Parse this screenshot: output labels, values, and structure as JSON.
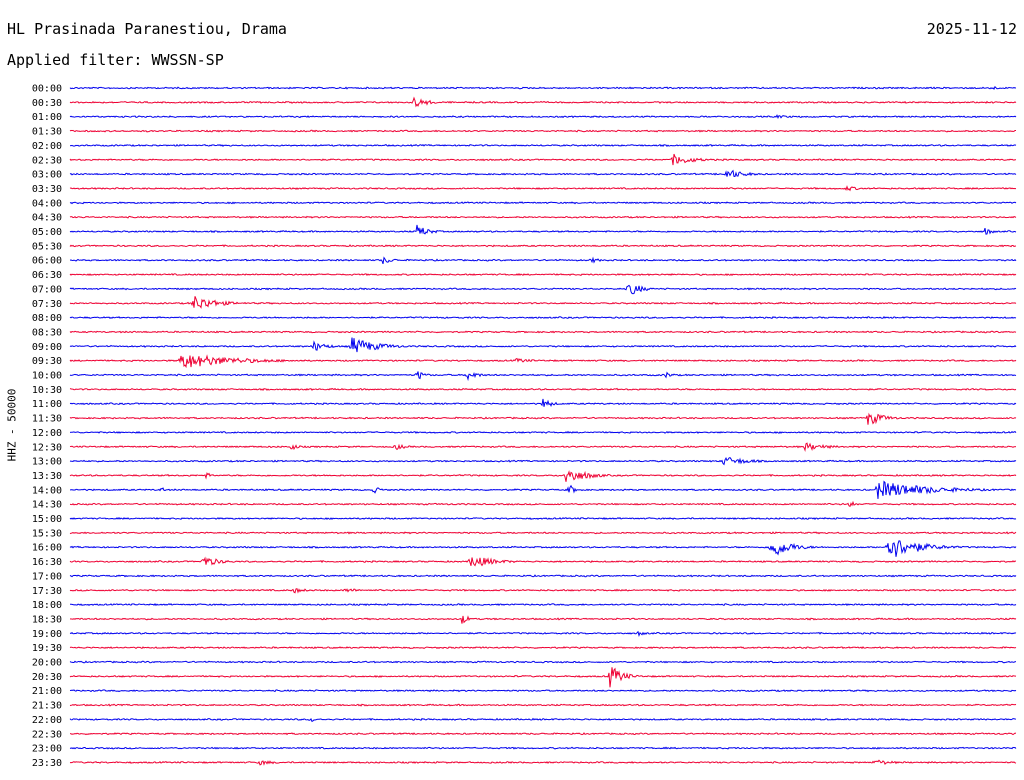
{
  "header": {
    "station": "HL Prasinada Paranestiou, Drama",
    "date": "2025-11-12",
    "filter": "Applied filter: WWSSN-SP"
  },
  "channel_label": "HHZ - 50000",
  "colors": {
    "trace_a": "#0000ee",
    "trace_b": "#ee0033",
    "text": "#000000",
    "background": "#ffffff"
  },
  "chart_data": {
    "type": "line",
    "title": "",
    "xlabel": "",
    "ylabel": "HHZ - 50000",
    "row_labels": [
      "00:00",
      "00:30",
      "01:00",
      "01:30",
      "02:00",
      "02:30",
      "03:00",
      "03:30",
      "04:00",
      "04:30",
      "05:00",
      "05:30",
      "06:00",
      "06:30",
      "07:00",
      "07:30",
      "08:00",
      "08:30",
      "09:00",
      "09:30",
      "10:00",
      "10:30",
      "11:00",
      "11:30",
      "12:00",
      "12:30",
      "13:00",
      "13:30",
      "14:00",
      "14:30",
      "15:00",
      "15:30",
      "16:00",
      "16:30",
      "17:00",
      "17:30",
      "18:00",
      "18:30",
      "19:00",
      "19:30",
      "20:00",
      "20:30",
      "21:00",
      "21:30",
      "22:00",
      "22:30",
      "23:00",
      "23:30"
    ],
    "row_colors": [
      "blue",
      "red"
    ],
    "x_range_minutes": [
      0,
      30
    ],
    "events": [
      {
        "row": "00:00",
        "minute": 29.2,
        "amp": 0.6,
        "dur": 0.4
      },
      {
        "row": "00:30",
        "minute": 10.9,
        "amp": 0.8,
        "dur": 1.3
      },
      {
        "row": "01:00",
        "minute": 22.4,
        "amp": 0.25,
        "dur": 1.5
      },
      {
        "row": "02:30",
        "minute": 19.1,
        "amp": 0.9,
        "dur": 1.8
      },
      {
        "row": "03:00",
        "minute": 20.8,
        "amp": 0.8,
        "dur": 1.6
      },
      {
        "row": "03:30",
        "minute": 24.6,
        "amp": 0.4,
        "dur": 1.2
      },
      {
        "row": "05:00",
        "minute": 11.0,
        "amp": 1.0,
        "dur": 1.0
      },
      {
        "row": "05:00",
        "minute": 29.0,
        "amp": 0.6,
        "dur": 0.7
      },
      {
        "row": "06:00",
        "minute": 9.9,
        "amp": 0.6,
        "dur": 1.0
      },
      {
        "row": "06:00",
        "minute": 16.5,
        "amp": 0.5,
        "dur": 0.7
      },
      {
        "row": "07:00",
        "minute": 17.7,
        "amp": 1.3,
        "dur": 1.0
      },
      {
        "row": "07:30",
        "minute": 3.9,
        "amp": 1.2,
        "dur": 2.0
      },
      {
        "row": "09:00",
        "minute": 7.7,
        "amp": 0.8,
        "dur": 1.2
      },
      {
        "row": "09:00",
        "minute": 8.9,
        "amp": 1.4,
        "dur": 2.2
      },
      {
        "row": "09:30",
        "minute": 3.5,
        "amp": 1.2,
        "dur": 4.6
      },
      {
        "row": "09:30",
        "minute": 14.1,
        "amp": 0.35,
        "dur": 1.8
      },
      {
        "row": "10:00",
        "minute": 11.0,
        "amp": 0.9,
        "dur": 0.6
      },
      {
        "row": "10:00",
        "minute": 12.6,
        "amp": 0.8,
        "dur": 0.9
      },
      {
        "row": "10:00",
        "minute": 18.9,
        "amp": 0.5,
        "dur": 0.6
      },
      {
        "row": "11:00",
        "minute": 15.0,
        "amp": 0.8,
        "dur": 0.8
      },
      {
        "row": "11:30",
        "minute": 25.3,
        "amp": 1.2,
        "dur": 1.3
      },
      {
        "row": "12:30",
        "minute": 7.0,
        "amp": 0.6,
        "dur": 0.6
      },
      {
        "row": "12:30",
        "minute": 10.3,
        "amp": 0.5,
        "dur": 1.0
      },
      {
        "row": "12:30",
        "minute": 23.3,
        "amp": 0.6,
        "dur": 2.0
      },
      {
        "row": "13:00",
        "minute": 20.7,
        "amp": 0.7,
        "dur": 2.2
      },
      {
        "row": "13:30",
        "minute": 4.3,
        "amp": 0.5,
        "dur": 0.6
      },
      {
        "row": "13:30",
        "minute": 15.7,
        "amp": 1.3,
        "dur": 1.8
      },
      {
        "row": "14:00",
        "minute": 2.9,
        "amp": 0.6,
        "dur": 0.3
      },
      {
        "row": "14:00",
        "minute": 9.6,
        "amp": 0.6,
        "dur": 0.7
      },
      {
        "row": "14:00",
        "minute": 15.8,
        "amp": 0.9,
        "dur": 0.6
      },
      {
        "row": "14:00",
        "minute": 25.6,
        "amp": 1.4,
        "dur": 4.4
      },
      {
        "row": "14:30",
        "minute": 24.7,
        "amp": 0.6,
        "dur": 0.5
      },
      {
        "row": "16:00",
        "minute": 22.2,
        "amp": 1.8,
        "dur": 1.6
      },
      {
        "row": "16:00",
        "minute": 25.9,
        "amp": 2.0,
        "dur": 2.5
      },
      {
        "row": "16:30",
        "minute": 4.2,
        "amp": 0.9,
        "dur": 1.4
      },
      {
        "row": "16:30",
        "minute": 12.7,
        "amp": 1.0,
        "dur": 2.0
      },
      {
        "row": "17:30",
        "minute": 7.1,
        "amp": 0.4,
        "dur": 1.2
      },
      {
        "row": "17:30",
        "minute": 8.7,
        "amp": 0.35,
        "dur": 1.4
      },
      {
        "row": "18:30",
        "minute": 12.4,
        "amp": 0.9,
        "dur": 0.6
      },
      {
        "row": "19:00",
        "minute": 18.0,
        "amp": 0.4,
        "dur": 0.8
      },
      {
        "row": "20:30",
        "minute": 17.1,
        "amp": 1.8,
        "dur": 1.1
      },
      {
        "row": "22:00",
        "minute": 7.6,
        "amp": 0.5,
        "dur": 0.6
      },
      {
        "row": "23:30",
        "minute": 6.0,
        "amp": 0.4,
        "dur": 1.4
      },
      {
        "row": "23:30",
        "minute": 25.5,
        "amp": 0.5,
        "dur": 1.5
      }
    ]
  }
}
